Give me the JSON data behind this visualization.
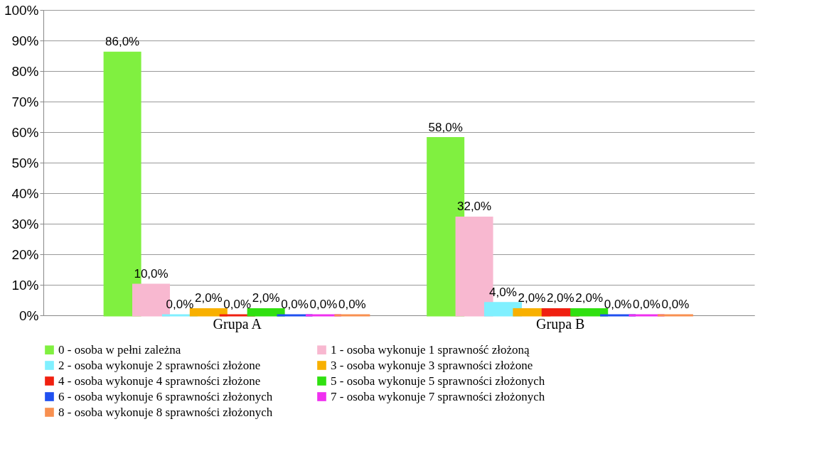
{
  "chart_data": {
    "type": "bar",
    "categories": [
      "Grupa A",
      "Grupa B"
    ],
    "series": [
      {
        "name": "0 - osoba w pełni zależna",
        "color": "#80f040",
        "values": [
          86.0,
          58.0
        ],
        "value_labels": [
          "86,0%",
          "58,0%"
        ]
      },
      {
        "name": "1 - osoba wykonuje 1 sprawność złożoną",
        "color": "#f8b8d0",
        "values": [
          10.0,
          32.0
        ],
        "value_labels": [
          "10,0%",
          "32,0%"
        ]
      },
      {
        "name": "2 - osoba wykonuje 2 sprawności złożone",
        "color": "#80f0ff",
        "values": [
          0.0,
          4.0
        ],
        "value_labels": [
          "0,0%",
          "4,0%"
        ]
      },
      {
        "name": "3 - osoba wykonuje 3 sprawności złożone",
        "color": "#f8b000",
        "values": [
          2.0,
          2.0
        ],
        "value_labels": [
          "2,0%",
          "2,0%"
        ]
      },
      {
        "name": "4 - osoba wykonuje 4 sprawności złożone",
        "color": "#f02010",
        "values": [
          0.0,
          2.0
        ],
        "value_labels": [
          "0,0%",
          "2,0%"
        ]
      },
      {
        "name": "5 - osoba wykonuje 5 sprawności złożonych",
        "color": "#30e010",
        "values": [
          2.0,
          2.0
        ],
        "value_labels": [
          "2,0%",
          "2,0%"
        ]
      },
      {
        "name": "6 - osoba wykonuje 6 sprawności złożonych",
        "color": "#2050f0",
        "values": [
          0.0,
          0.0
        ],
        "value_labels": [
          "0,0%",
          "0,0%"
        ]
      },
      {
        "name": "7 - osoba wykonuje 7 sprawności złożonych",
        "color": "#f030f0",
        "values": [
          0.0,
          0.0
        ],
        "value_labels": [
          "0,0%",
          "0,0%"
        ]
      },
      {
        "name": "8 - osoba wykonuje 8 sprawności złożonych",
        "color": "#f89050",
        "values": [
          0.0,
          0.0
        ],
        "value_labels": [
          "0,0%",
          "0,0%"
        ]
      }
    ],
    "ylim": [
      0,
      100
    ],
    "yticks": [
      {
        "value": 0,
        "label": "0%"
      },
      {
        "value": 10,
        "label": "10%"
      },
      {
        "value": 20,
        "label": "20%"
      },
      {
        "value": 30,
        "label": "30%"
      },
      {
        "value": 40,
        "label": "40%"
      },
      {
        "value": 50,
        "label": "50%"
      },
      {
        "value": 60,
        "label": "60%"
      },
      {
        "value": 70,
        "label": "70%"
      },
      {
        "value": 80,
        "label": "80%"
      },
      {
        "value": 90,
        "label": "90%"
      },
      {
        "value": 100,
        "label": "100%"
      }
    ],
    "grid": "y",
    "legend": "bottom"
  }
}
